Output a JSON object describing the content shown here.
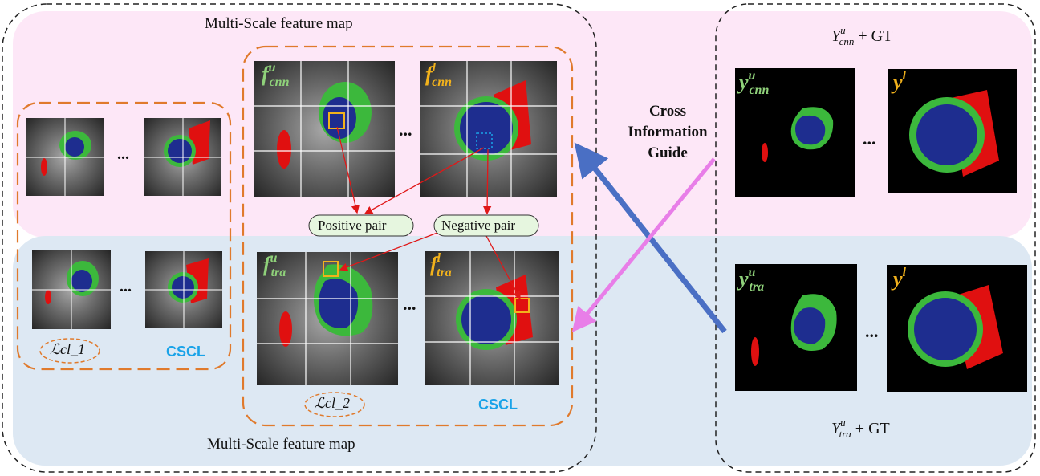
{
  "titles": {
    "top_feature_map": "Multi-Scale feature map",
    "bottom_feature_map": "Multi-Scale feature map"
  },
  "guide": {
    "line1": "Cross",
    "line2": "Information",
    "line3": "Guide"
  },
  "pairs": {
    "positive": "Positive pair",
    "negative": "Negative pair"
  },
  "losses": {
    "left": "ℒcl_1",
    "middle": "ℒcl_2"
  },
  "cscl": {
    "left": "CSCL",
    "middle": "CSCL"
  },
  "ellipsis": "...",
  "features": {
    "f_cnn_u": {
      "base": "f",
      "sup": "u",
      "sub": "cnn"
    },
    "f_cnn_l": {
      "base": "f",
      "sup": "l",
      "sub": "cnn"
    },
    "f_tra_u": {
      "base": "f",
      "sup": "u",
      "sub": "tra"
    },
    "f_tra_l": {
      "base": "f",
      "sup": "l",
      "sub": "tra"
    }
  },
  "predictions": {
    "y_cnn_u": {
      "base": "y",
      "sup": "u",
      "sub": "cnn"
    },
    "y_l_top": {
      "base": "y",
      "sup": "l"
    },
    "y_tra_u": {
      "base": "y",
      "sup": "u",
      "sub": "tra"
    },
    "y_l_bottom": {
      "base": "y",
      "sup": "l"
    }
  },
  "gt_labels": {
    "top": {
      "base": "Y",
      "sup": "u",
      "sub": "cnn",
      "suffix": "+ GT"
    },
    "bottom": {
      "base": "Y",
      "sup": "u",
      "sub": "tra",
      "suffix": "+ GT"
    }
  },
  "colors": {
    "pink_region": "#fde7f7",
    "blue_region": "#dde8f3",
    "orange_dash": "#e07a2c",
    "green_label": "#8fd17a",
    "yellow_label": "#f2b21c",
    "cscl_blue": "#1aa3e8",
    "seg_blue": "#1e2d8f",
    "seg_green": "#3cb83c",
    "seg_red": "#e01010",
    "arrow_red": "#e01818",
    "arrow_blue": "#4a6fc4",
    "arrow_pink": "#e87ee8"
  }
}
